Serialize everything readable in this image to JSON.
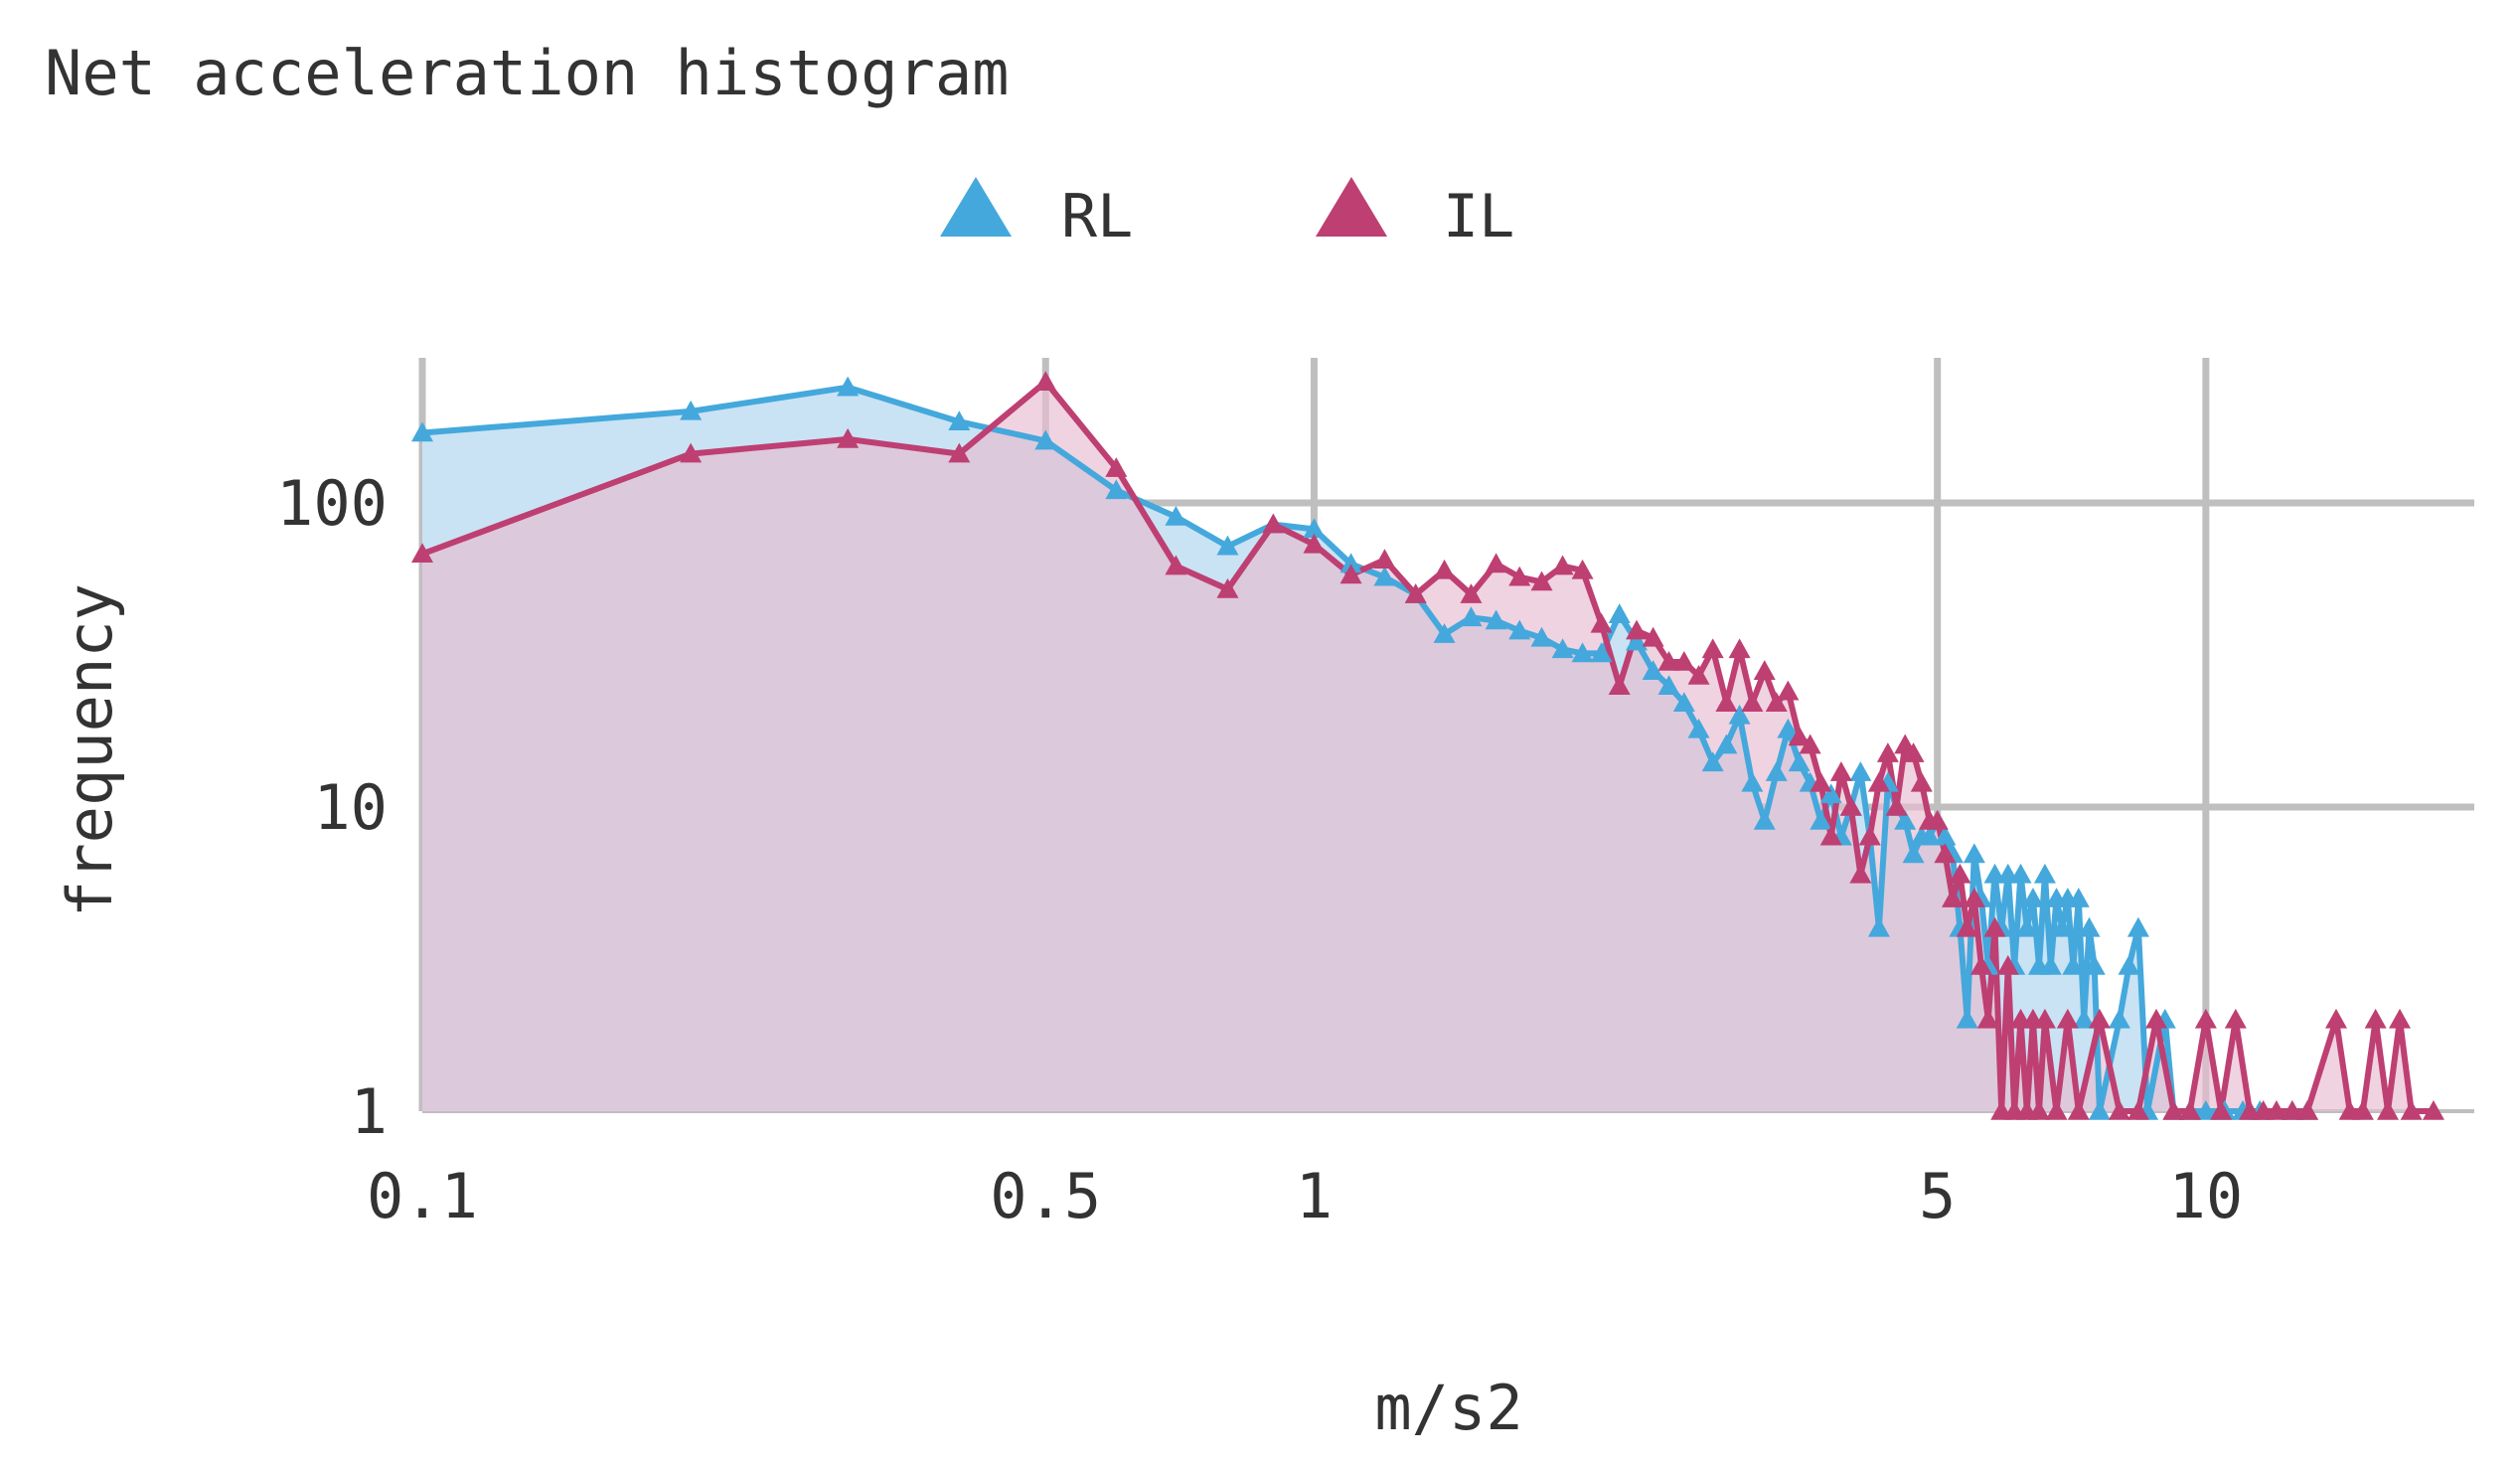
{
  "chart_data": {
    "type": "area",
    "title": "Net acceleration histogram",
    "xlabel": "m/s2",
    "ylabel": "frequency",
    "xscale": "log",
    "yscale": "log",
    "xlim": [
      0.1,
      20
    ],
    "ylim": [
      1,
      300
    ],
    "x_ticks": [
      {
        "value": 0.1,
        "label": "0.1"
      },
      {
        "value": 0.5,
        "label": "0.5"
      },
      {
        "value": 1,
        "label": "1"
      },
      {
        "value": 5,
        "label": "5"
      },
      {
        "value": 10,
        "label": "10"
      }
    ],
    "y_ticks": [
      {
        "value": 1,
        "label": "1"
      },
      {
        "value": 10,
        "label": "10"
      },
      {
        "value": 100,
        "label": "100"
      }
    ],
    "grid": true,
    "legend_position": "top",
    "marker": "triangle",
    "series": [
      {
        "name": "RL",
        "color": "#44a8dc",
        "fill": "#c9e3f4",
        "points": [
          [
            0.1,
            170
          ],
          [
            0.2,
            200
          ],
          [
            0.3,
            240
          ],
          [
            0.4,
            185
          ],
          [
            0.5,
            160
          ],
          [
            0.6,
            110
          ],
          [
            0.7,
            90
          ],
          [
            0.8,
            72
          ],
          [
            0.9,
            85
          ],
          [
            1.0,
            82
          ],
          [
            1.1,
            63
          ],
          [
            1.2,
            57
          ],
          [
            1.3,
            50
          ],
          [
            1.4,
            37
          ],
          [
            1.5,
            42
          ],
          [
            1.6,
            41
          ],
          [
            1.7,
            38
          ],
          [
            1.8,
            36
          ],
          [
            1.9,
            33
          ],
          [
            2.0,
            32
          ],
          [
            2.1,
            32
          ],
          [
            2.2,
            43
          ],
          [
            2.3,
            35
          ],
          [
            2.4,
            28
          ],
          [
            2.5,
            25
          ],
          [
            2.6,
            22
          ],
          [
            2.7,
            18
          ],
          [
            2.8,
            14
          ],
          [
            2.9,
            16
          ],
          [
            3.0,
            20
          ],
          [
            3.1,
            12
          ],
          [
            3.2,
            9
          ],
          [
            3.3,
            13
          ],
          [
            3.4,
            18
          ],
          [
            3.5,
            14
          ],
          [
            3.6,
            12
          ],
          [
            3.7,
            9
          ],
          [
            3.8,
            11
          ],
          [
            3.9,
            8
          ],
          [
            4.0,
            10
          ],
          [
            4.1,
            13
          ],
          [
            4.2,
            8
          ],
          [
            4.3,
            4
          ],
          [
            4.4,
            12
          ],
          [
            4.5,
            10
          ],
          [
            4.6,
            9
          ],
          [
            4.7,
            7
          ],
          [
            4.8,
            8
          ],
          [
            4.9,
            8
          ],
          [
            5.0,
            9
          ],
          [
            5.1,
            8
          ],
          [
            5.2,
            7
          ],
          [
            5.3,
            4
          ],
          [
            5.4,
            2
          ],
          [
            5.5,
            7
          ],
          [
            5.6,
            5
          ],
          [
            5.7,
            3
          ],
          [
            5.8,
            6
          ],
          [
            5.9,
            4
          ],
          [
            6.0,
            6
          ],
          [
            6.1,
            3
          ],
          [
            6.2,
            6
          ],
          [
            6.3,
            4
          ],
          [
            6.4,
            5
          ],
          [
            6.5,
            3
          ],
          [
            6.6,
            6
          ],
          [
            6.7,
            3
          ],
          [
            6.8,
            5
          ],
          [
            6.9,
            4
          ],
          [
            7.0,
            5
          ],
          [
            7.1,
            3
          ],
          [
            7.2,
            5
          ],
          [
            7.3,
            2
          ],
          [
            7.4,
            4
          ],
          [
            7.5,
            3
          ],
          [
            7.6,
            1
          ],
          [
            8.0,
            2
          ],
          [
            8.2,
            3
          ],
          [
            8.4,
            4
          ],
          [
            8.6,
            1
          ],
          [
            9.0,
            2
          ],
          [
            9.2,
            1
          ],
          [
            9.6,
            1
          ],
          [
            10.0,
            1
          ],
          [
            10.5,
            1
          ],
          [
            11.0,
            1
          ],
          [
            11.5,
            1
          ],
          [
            12.5,
            1
          ],
          [
            13.0,
            1
          ]
        ]
      },
      {
        "name": "IL",
        "color": "#be3f72",
        "fill": "#e8bcd0",
        "points": [
          [
            0.1,
            68
          ],
          [
            0.2,
            145
          ],
          [
            0.3,
            162
          ],
          [
            0.4,
            145
          ],
          [
            0.5,
            250
          ],
          [
            0.6,
            130
          ],
          [
            0.7,
            62
          ],
          [
            0.8,
            52
          ],
          [
            0.9,
            85
          ],
          [
            1.0,
            73
          ],
          [
            1.1,
            58
          ],
          [
            1.2,
            65
          ],
          [
            1.3,
            50
          ],
          [
            1.4,
            60
          ],
          [
            1.5,
            50
          ],
          [
            1.6,
            63
          ],
          [
            1.7,
            57
          ],
          [
            1.8,
            55
          ],
          [
            1.9,
            62
          ],
          [
            2.0,
            60
          ],
          [
            2.1,
            40
          ],
          [
            2.2,
            25
          ],
          [
            2.3,
            38
          ],
          [
            2.4,
            36
          ],
          [
            2.5,
            30
          ],
          [
            2.6,
            30
          ],
          [
            2.7,
            27
          ],
          [
            2.8,
            33
          ],
          [
            2.9,
            22
          ],
          [
            3.0,
            33
          ],
          [
            3.1,
            22
          ],
          [
            3.2,
            28
          ],
          [
            3.3,
            22
          ],
          [
            3.4,
            24
          ],
          [
            3.5,
            17
          ],
          [
            3.6,
            16
          ],
          [
            3.7,
            12
          ],
          [
            3.8,
            8
          ],
          [
            3.9,
            13
          ],
          [
            4.0,
            10
          ],
          [
            4.1,
            6
          ],
          [
            4.2,
            8
          ],
          [
            4.3,
            12
          ],
          [
            4.4,
            15
          ],
          [
            4.5,
            10
          ],
          [
            4.6,
            16
          ],
          [
            4.7,
            15
          ],
          [
            4.8,
            12
          ],
          [
            4.9,
            9
          ],
          [
            5.0,
            9
          ],
          [
            5.1,
            7
          ],
          [
            5.2,
            5
          ],
          [
            5.3,
            6
          ],
          [
            5.4,
            4
          ],
          [
            5.5,
            5
          ],
          [
            5.6,
            3
          ],
          [
            5.7,
            2
          ],
          [
            5.8,
            4
          ],
          [
            5.9,
            1
          ],
          [
            6.0,
            3
          ],
          [
            6.1,
            1
          ],
          [
            6.2,
            2
          ],
          [
            6.3,
            1
          ],
          [
            6.4,
            2
          ],
          [
            6.5,
            1
          ],
          [
            6.6,
            2
          ],
          [
            6.8,
            1
          ],
          [
            7.0,
            2
          ],
          [
            7.2,
            1
          ],
          [
            7.6,
            2
          ],
          [
            8.0,
            1
          ],
          [
            8.4,
            1
          ],
          [
            8.8,
            2
          ],
          [
            9.2,
            1
          ],
          [
            9.6,
            1
          ],
          [
            10.0,
            2
          ],
          [
            10.4,
            1
          ],
          [
            10.8,
            2
          ],
          [
            11.2,
            1
          ],
          [
            11.6,
            1
          ],
          [
            12.0,
            1
          ],
          [
            12.5,
            1
          ],
          [
            13.0,
            1
          ],
          [
            14.0,
            2
          ],
          [
            14.5,
            1
          ],
          [
            15.0,
            1
          ],
          [
            15.5,
            2
          ],
          [
            16.0,
            1
          ],
          [
            16.5,
            2
          ],
          [
            17.0,
            1
          ],
          [
            18.0,
            1
          ]
        ]
      }
    ]
  }
}
